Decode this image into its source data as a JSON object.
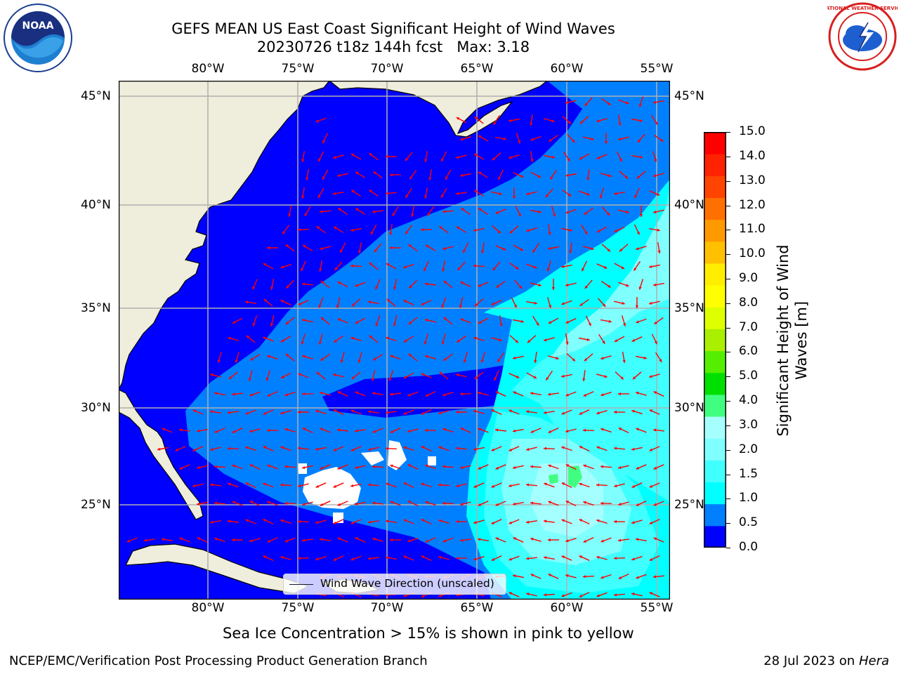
{
  "header": {
    "title_line1": "GEFS MEAN US East Coast Significant Height of Wind Waves",
    "title_line2": "20230726 t18z 144h fcst   Max: 3.18"
  },
  "logos": {
    "noaa_text": "NOAA",
    "nws_text": "NATIONAL WEATHER SERVICE"
  },
  "map": {
    "lon_labels": [
      "80°W",
      "75°W",
      "70°W",
      "65°W",
      "60°W",
      "55°W"
    ],
    "lat_labels": [
      "45°N",
      "40°N",
      "35°N",
      "30°N",
      "25°N"
    ],
    "legend_label": "Wind Wave Direction (unscaled)",
    "colors": {
      "land": "#efeddb",
      "ocean_low": "#0000ff",
      "band_0_5": "#0080ff",
      "band_1_0": "#00ffff",
      "band_1_5": "#40ffff",
      "band_2_0": "#80ffff",
      "band_2_5": "#a6ffff",
      "arrow": "#ff0000",
      "grid": "#b0b0b0"
    }
  },
  "colorbar": {
    "label_line1": "Significant Height of Wind",
    "label_line2": "Waves [m]",
    "ticks": [
      "15.0",
      "14.0",
      "13.0",
      "12.0",
      "11.0",
      "10.0",
      "9.0",
      "8.0",
      "7.0",
      "6.0",
      "5.0",
      "4.0",
      "3.0",
      "2.0",
      "1.5",
      "1.0",
      "0.5",
      "0.0"
    ],
    "colors_bottom_to_top": [
      "#0000ff",
      "#0080ff",
      "#00ffff",
      "#40ffff",
      "#80ffff",
      "#a6ffff",
      "#40ff80",
      "#00e000",
      "#55ee00",
      "#aaee00",
      "#ddff00",
      "#ffff00",
      "#ffee00",
      "#ffc000",
      "#ff9900",
      "#ff7000",
      "#ff4400",
      "#ff2200",
      "#ff0000"
    ]
  },
  "notes": {
    "sea_ice": "Sea Ice Concentration > 15% is shown in pink to yellow",
    "footer_left": "NCEP/EMC/Verification Post Processing Product Generation Branch",
    "footer_date": "28 Jul 2023 on ",
    "footer_host": "Hera"
  }
}
